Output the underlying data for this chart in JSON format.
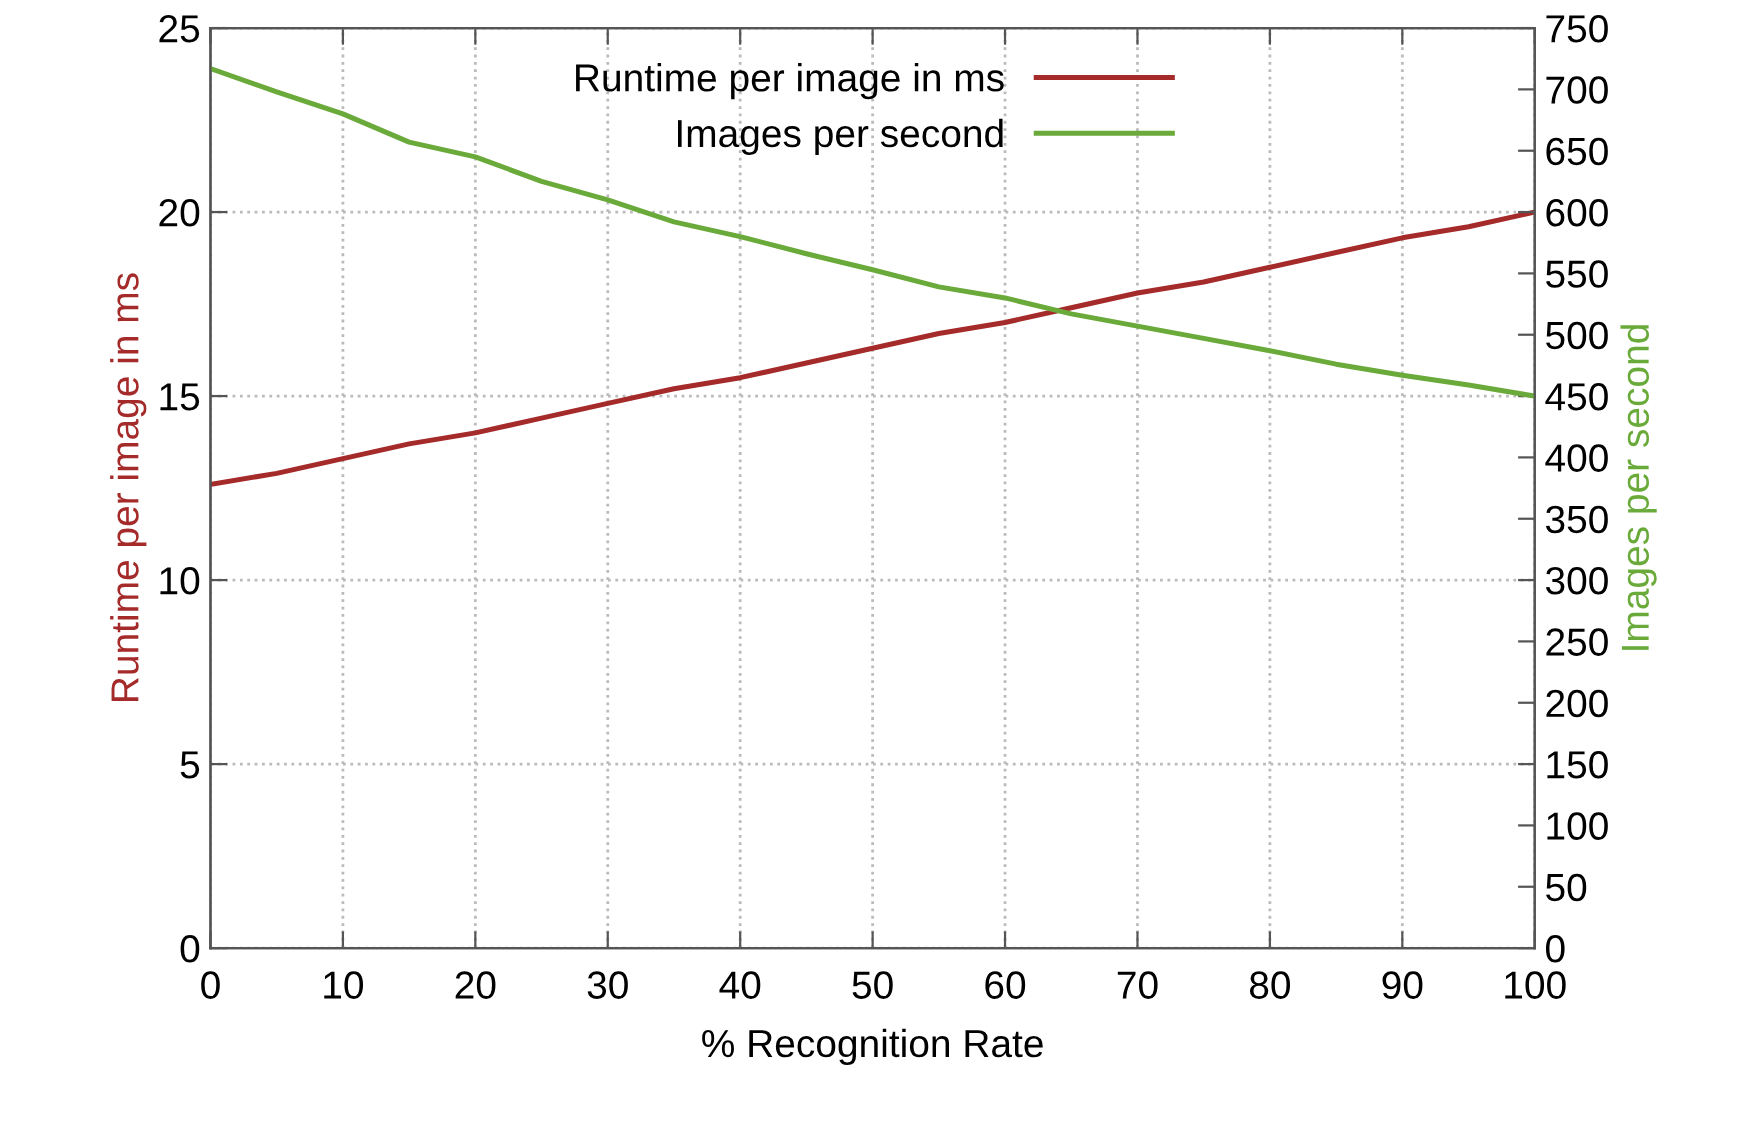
{
  "chart_data": {
    "type": "line",
    "xlabel": "% Recognition Rate",
    "ylabel": "Runtime per image in ms",
    "y2label": "Images per second",
    "x": [
      0,
      5,
      10,
      15,
      20,
      25,
      30,
      35,
      40,
      45,
      50,
      55,
      60,
      65,
      70,
      75,
      80,
      85,
      90,
      95,
      100
    ],
    "series": [
      {
        "name": "Runtime per image in ms",
        "color": "#a52a2a",
        "values": [
          12.6,
          12.9,
          13.3,
          13.7,
          14.0,
          14.4,
          14.8,
          15.2,
          15.5,
          15.9,
          16.3,
          16.7,
          17.0,
          17.4,
          17.8,
          18.1,
          18.5,
          18.9,
          19.3,
          19.6,
          20.0
        ]
      },
      {
        "name": "Images per second",
        "color": "#6aaa3a",
        "axis": "y2",
        "values": [
          717,
          698,
          680,
          657,
          645,
          625,
          610,
          592,
          580,
          566,
          553,
          539,
          530,
          517,
          507,
          497,
          487,
          476,
          467,
          459,
          450
        ]
      }
    ],
    "xlim": [
      0,
      100
    ],
    "xticks": [
      0,
      10,
      20,
      30,
      40,
      50,
      60,
      70,
      80,
      90,
      100
    ],
    "ylim": [
      0,
      25
    ],
    "yticks": [
      0,
      5,
      10,
      15,
      20,
      25
    ],
    "y2lim": [
      0,
      750
    ],
    "y2ticks": [
      0,
      50,
      100,
      150,
      200,
      250,
      300,
      350,
      400,
      450,
      500,
      550,
      600,
      650,
      700,
      750
    ],
    "grid": true,
    "legend": "top",
    "marker": "none",
    "line_style": "solid"
  }
}
